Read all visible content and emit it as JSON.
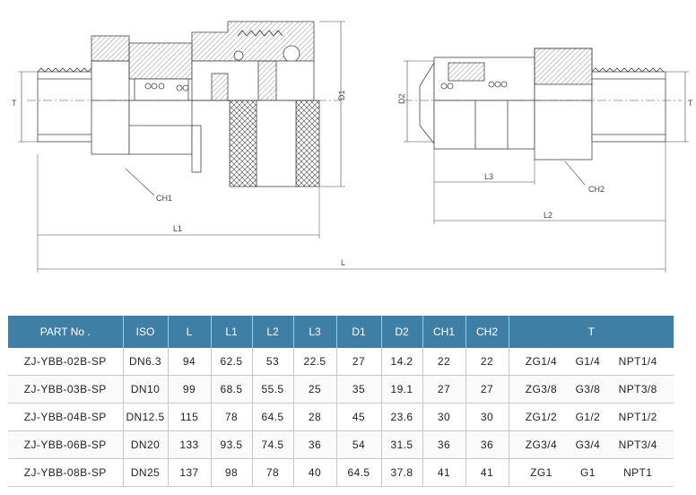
{
  "drawing": {
    "labels": {
      "T_left": "T",
      "D1": "D1",
      "CH1": "CH1",
      "L1": "L1",
      "L": "L",
      "D2": "D2",
      "T_right": "T",
      "L3": "L3",
      "CH2": "CH2",
      "L2": "L2"
    }
  },
  "table": {
    "headers": [
      "PART No .",
      "ISO",
      "L",
      "L1",
      "L2",
      "L3",
      "D1",
      "D2",
      "CH1",
      "CH2",
      "T"
    ],
    "rows": [
      {
        "part": "ZJ-YBB-02B-SP",
        "iso": "DN6.3",
        "L": "94",
        "L1": "62.5",
        "L2": "53",
        "L3": "22.5",
        "D1": "27",
        "D2": "14.2",
        "CH1": "22",
        "CH2": "22",
        "T": [
          "ZG1/4",
          "G1/4",
          "NPT1/4"
        ]
      },
      {
        "part": "ZJ-YBB-03B-SP",
        "iso": "DN10",
        "L": "99",
        "L1": "68.5",
        "L2": "55.5",
        "L3": "25",
        "D1": "35",
        "D2": "19.1",
        "CH1": "27",
        "CH2": "27",
        "T": [
          "ZG3/8",
          "G3/8",
          "NPT3/8"
        ]
      },
      {
        "part": "ZJ-YBB-04B-SP",
        "iso": "DN12.5",
        "L": "115",
        "L1": "78",
        "L2": "64.5",
        "L3": "28",
        "D1": "45",
        "D2": "23.6",
        "CH1": "30",
        "CH2": "30",
        "T": [
          "ZG1/2",
          "G1/2",
          "NPT1/2"
        ]
      },
      {
        "part": "ZJ-YBB-06B-SP",
        "iso": "DN20",
        "L": "133",
        "L1": "93.5",
        "L2": "74.5",
        "L3": "36",
        "D1": "54",
        "D2": "31.5",
        "CH1": "36",
        "CH2": "36",
        "T": [
          "ZG3/4",
          "G3/4",
          "NPT3/4"
        ]
      },
      {
        "part": "ZJ-YBB-08B-SP",
        "iso": "DN25",
        "L": "137",
        "L1": "98",
        "L2": "78",
        "L3": "40",
        "D1": "64.5",
        "D2": "37.8",
        "CH1": "41",
        "CH2": "41",
        "T": [
          "ZG1",
          "G1",
          "NPT1"
        ]
      }
    ]
  }
}
